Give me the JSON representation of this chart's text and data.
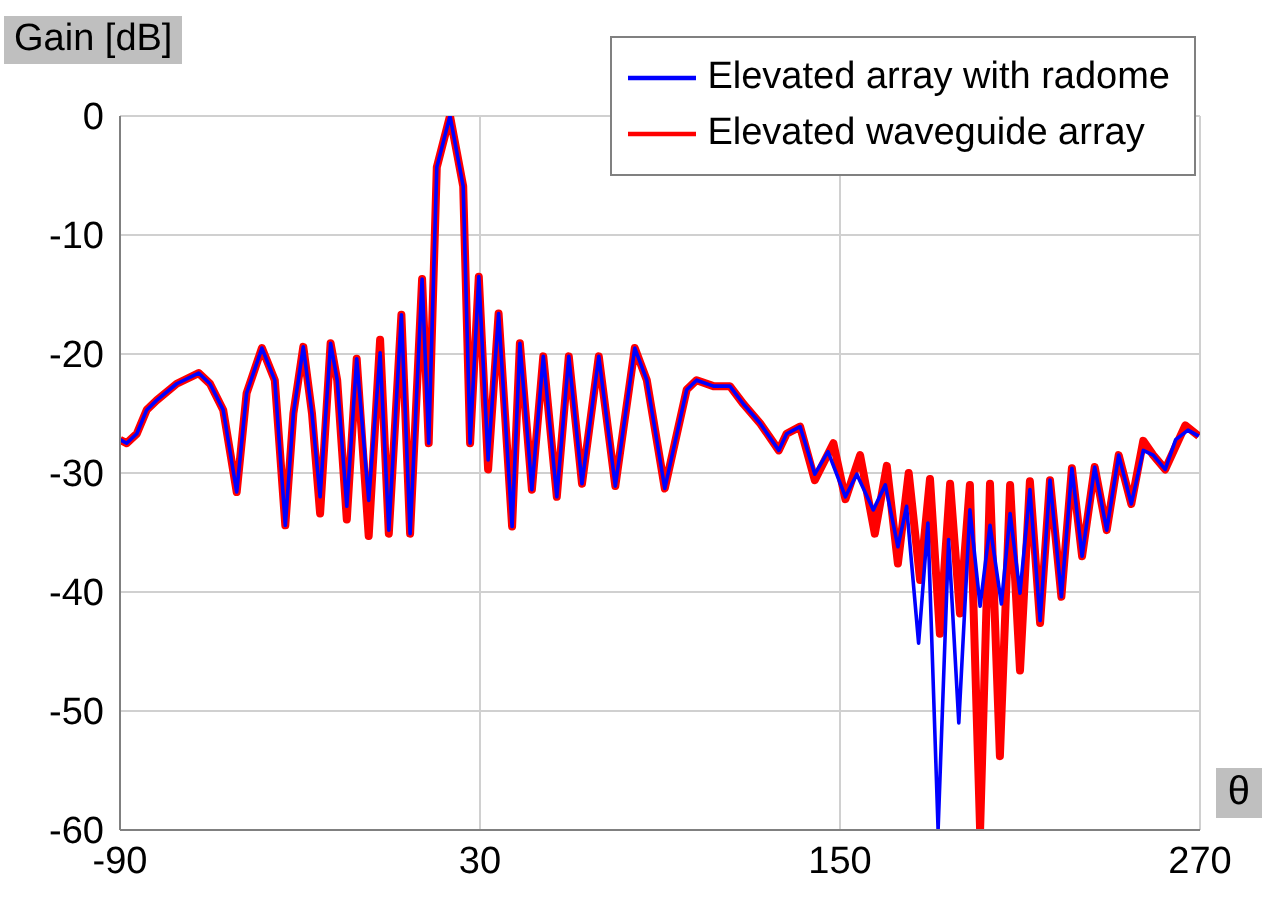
{
  "chart_data": {
    "type": "line",
    "xlabel": "θ",
    "ylabel": "Gain [dB]",
    "xlim": [
      -90,
      270
    ],
    "xticks": [
      -90,
      30,
      150,
      270
    ],
    "ylim": [
      -60,
      0
    ],
    "yticks": [
      0,
      -10,
      -20,
      -30,
      -40,
      -50,
      -60
    ],
    "grid": true,
    "legend": "top right",
    "series": [
      {
        "name": "Elevated array with radome",
        "color": "#0000ff",
        "x": [
          -90,
          -87.8,
          -84.4,
          -81.1,
          -77.8,
          -71.1,
          -63.8,
          -60,
          -55.6,
          -51.1,
          -47.8,
          -42.7,
          -38.4,
          -34.9,
          -32.2,
          -28.9,
          -26,
          -23.3,
          -19.8,
          -17.6,
          -14.4,
          -11.1,
          -7.1,
          -3.3,
          -0.4,
          3.8,
          6.7,
          10.7,
          12.9,
          15.6,
          20,
          24.4,
          26.7,
          29.6,
          32.7,
          36.2,
          40.7,
          43.3,
          47.3,
          51.1,
          55.6,
          59.6,
          64,
          69.6,
          75.1,
          81.6,
          85.6,
          91.6,
          98.9,
          102.2,
          107.8,
          113.3,
          117.8,
          123.3,
          129.6,
          132.2,
          136.7,
          141.6,
          146,
          151.8,
          155.6,
          161.1,
          165.1,
          169.3,
          172.2,
          176.2,
          179.3,
          182.7,
          186.2,
          189.6,
          193.3,
          196.7,
          200,
          203.8,
          206.7,
          210,
          213.3,
          216.7,
          220,
          223.8,
          227.3,
          230.7,
          234.9,
          238.9,
          242.9,
          247.1,
          251.1,
          254.4,
          258.4,
          261.9,
          266,
          269.6
        ],
        "values": [
          -27.2,
          -27.5,
          -26.7,
          -24.7,
          -23.9,
          -22.5,
          -21.6,
          -22.5,
          -24.7,
          -31.6,
          -23.3,
          -19.5,
          -22.2,
          -34.4,
          -25,
          -19.4,
          -25,
          -32,
          -19.1,
          -22.2,
          -32.8,
          -20.4,
          -32.3,
          -19.9,
          -34.8,
          -16.7,
          -35.1,
          -13.7,
          -27.5,
          -4.3,
          0,
          -5.9,
          -27.5,
          -13.5,
          -28.9,
          -16.6,
          -34.5,
          -19.1,
          -31.4,
          -20.2,
          -32,
          -20.2,
          -30.9,
          -20.2,
          -31.1,
          -19.5,
          -22.2,
          -31.3,
          -23,
          -22.2,
          -22.7,
          -22.7,
          -24.2,
          -25.8,
          -28.1,
          -26.7,
          -26.1,
          -30.1,
          -28.2,
          -32,
          -30.1,
          -33.1,
          -31,
          -36.2,
          -32.8,
          -44.3,
          -34.2,
          -60,
          -35.6,
          -51,
          -33.1,
          -41.2,
          -34.4,
          -41,
          -33.4,
          -40.1,
          -31.4,
          -42.4,
          -30.6,
          -40.4,
          -29.6,
          -37,
          -29.5,
          -34.8,
          -28.5,
          -32.6,
          -28.1,
          -28.5,
          -29.7,
          -27.2,
          -26.4,
          -26.9
        ]
      },
      {
        "name": "Elevated waveguide array",
        "color": "#ff0000",
        "x": [
          -90,
          -87.8,
          -84.4,
          -81.1,
          -77.8,
          -71.1,
          -63.8,
          -60,
          -55.6,
          -51.1,
          -47.8,
          -42.7,
          -38.4,
          -34.9,
          -32.2,
          -28.9,
          -26,
          -23.3,
          -19.8,
          -17.6,
          -14.4,
          -11.1,
          -7.1,
          -3.3,
          -0.4,
          3.8,
          6.7,
          10.7,
          12.9,
          15.6,
          20,
          24.4,
          26.7,
          29.6,
          32.7,
          36.2,
          40.7,
          43.3,
          47.3,
          51.1,
          55.6,
          59.6,
          64,
          69.6,
          75.1,
          81.6,
          85.6,
          91.6,
          98.9,
          102.2,
          107.8,
          113.3,
          117.8,
          123.3,
          129.6,
          132.2,
          136.7,
          141.6,
          147.8,
          151.8,
          156.7,
          161.6,
          165.6,
          169.3,
          172.9,
          176.7,
          180,
          183.3,
          186.7,
          190,
          193.3,
          196.7,
          200,
          203.3,
          206.7,
          210,
          213.3,
          216.7,
          220,
          223.8,
          227.3,
          230.7,
          234.9,
          238.9,
          242.9,
          247.1,
          251.1,
          254.4,
          258.4,
          265.1,
          269.6
        ],
        "values": [
          -27.2,
          -27.5,
          -26.7,
          -24.7,
          -23.9,
          -22.5,
          -21.6,
          -22.5,
          -24.7,
          -31.6,
          -23.3,
          -19.5,
          -22.2,
          -34.4,
          -25,
          -19.4,
          -25,
          -33.4,
          -19.1,
          -22.2,
          -33.9,
          -20.4,
          -35.3,
          -18.8,
          -35.1,
          -16.7,
          -35.1,
          -13.7,
          -27.5,
          -4.3,
          0,
          -5.9,
          -27.5,
          -13.5,
          -29.7,
          -16.6,
          -34.5,
          -19.1,
          -31.4,
          -20.2,
          -32,
          -20.2,
          -30.9,
          -20.2,
          -31.1,
          -19.5,
          -22.2,
          -31.3,
          -23,
          -22.2,
          -22.7,
          -22.7,
          -24.2,
          -25.8,
          -28.1,
          -26.7,
          -26.1,
          -30.6,
          -27.5,
          -32.2,
          -28.5,
          -35.1,
          -29.4,
          -37.6,
          -30,
          -39,
          -30.5,
          -43.5,
          -30.9,
          -41.8,
          -31,
          -60,
          -30.9,
          -53.8,
          -31,
          -46.6,
          -30.7,
          -42.6,
          -30.6,
          -40.4,
          -29.6,
          -37,
          -29.5,
          -34.8,
          -28.5,
          -32.6,
          -27.3,
          -28.5,
          -29.7,
          -26,
          -26.9
        ]
      }
    ]
  }
}
